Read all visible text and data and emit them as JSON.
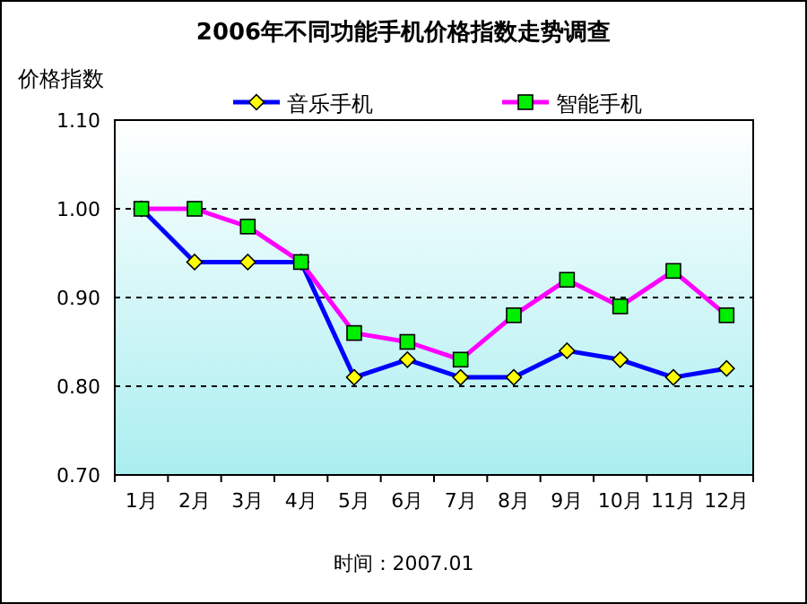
{
  "chart_data": {
    "type": "line",
    "title": "2006年不同功能手机价格指数走势调查",
    "ylabel": "价格指数",
    "categories": [
      "1月",
      "2月",
      "3月",
      "4月",
      "5月",
      "6月",
      "7月",
      "8月",
      "9月",
      "10月",
      "11月",
      "12月"
    ],
    "series": [
      {
        "name": "音乐手机",
        "color": "#0000ff",
        "marker": "diamond",
        "values": [
          1.0,
          0.94,
          0.94,
          0.94,
          0.81,
          0.83,
          0.81,
          0.81,
          0.84,
          0.83,
          0.81,
          0.82
        ]
      },
      {
        "name": "智能手机",
        "color": "#ff00ff",
        "marker": "square",
        "values": [
          1.0,
          1.0,
          0.98,
          0.94,
          0.86,
          0.85,
          0.83,
          0.88,
          0.92,
          0.89,
          0.93,
          0.88
        ]
      }
    ],
    "ylim": [
      0.7,
      1.1
    ],
    "yticks": [
      {
        "value": 0.7,
        "label": "0.70"
      },
      {
        "value": 0.8,
        "label": "0.80"
      },
      {
        "value": 0.9,
        "label": "0.90"
      },
      {
        "value": 1.0,
        "label": "1.00"
      },
      {
        "value": 1.1,
        "label": "1.10"
      }
    ],
    "grid": "y",
    "legend": "top",
    "line_style": "solid",
    "annotations": [
      "时间：2007.01"
    ]
  }
}
